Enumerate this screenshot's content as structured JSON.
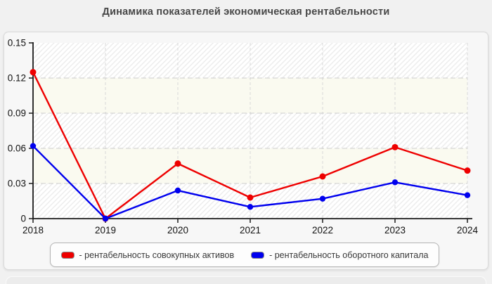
{
  "page": {
    "title": "Динамика показателей экономическая рентабельности"
  },
  "chart_data": {
    "type": "line",
    "title": "Динамика показателей экономическая рентабельности",
    "x": [
      "2018",
      "2019",
      "2020",
      "2021",
      "2022",
      "2023",
      "2024"
    ],
    "series": [
      {
        "name": "рентабельность совокупных активов",
        "color": "#ee0000",
        "values": [
          0.125,
          0.0,
          0.047,
          0.018,
          0.036,
          0.061,
          0.041
        ]
      },
      {
        "name": "рентабельность оборотного капитала",
        "color": "#0000ee",
        "values": [
          0.062,
          0.0,
          0.024,
          0.01,
          0.017,
          0.031,
          0.02
        ]
      }
    ],
    "xlabel": "",
    "ylabel": "",
    "ylim": [
      0,
      0.15
    ],
    "yticks": [
      0,
      0.03,
      0.06,
      0.09,
      0.12,
      0.15
    ],
    "ytick_labels": [
      "0",
      "0.03",
      "0.06",
      "0.09",
      "0.12",
      "0.15"
    ],
    "grid": "dashed horizontal and vertical",
    "plot_bands": "alternating white-hatched and cream horizontal bands",
    "legend_position": "bottom"
  },
  "legend": {
    "entries": [
      {
        "label": "- рентабельность совокупных активов",
        "color": "#ee0000"
      },
      {
        "label": "- рентабельность оборотного капитала",
        "color": "#0000ee"
      }
    ]
  },
  "colors": {
    "page_background": "#f1f1f1",
    "card_background": "#f7f7f7",
    "band_cream": "#fafaf0",
    "hatch_line": "#eaeaea",
    "gridline": "#cccccc",
    "axis": "#1a1a1a",
    "title_text": "#474747",
    "tick_text": "#111111"
  }
}
